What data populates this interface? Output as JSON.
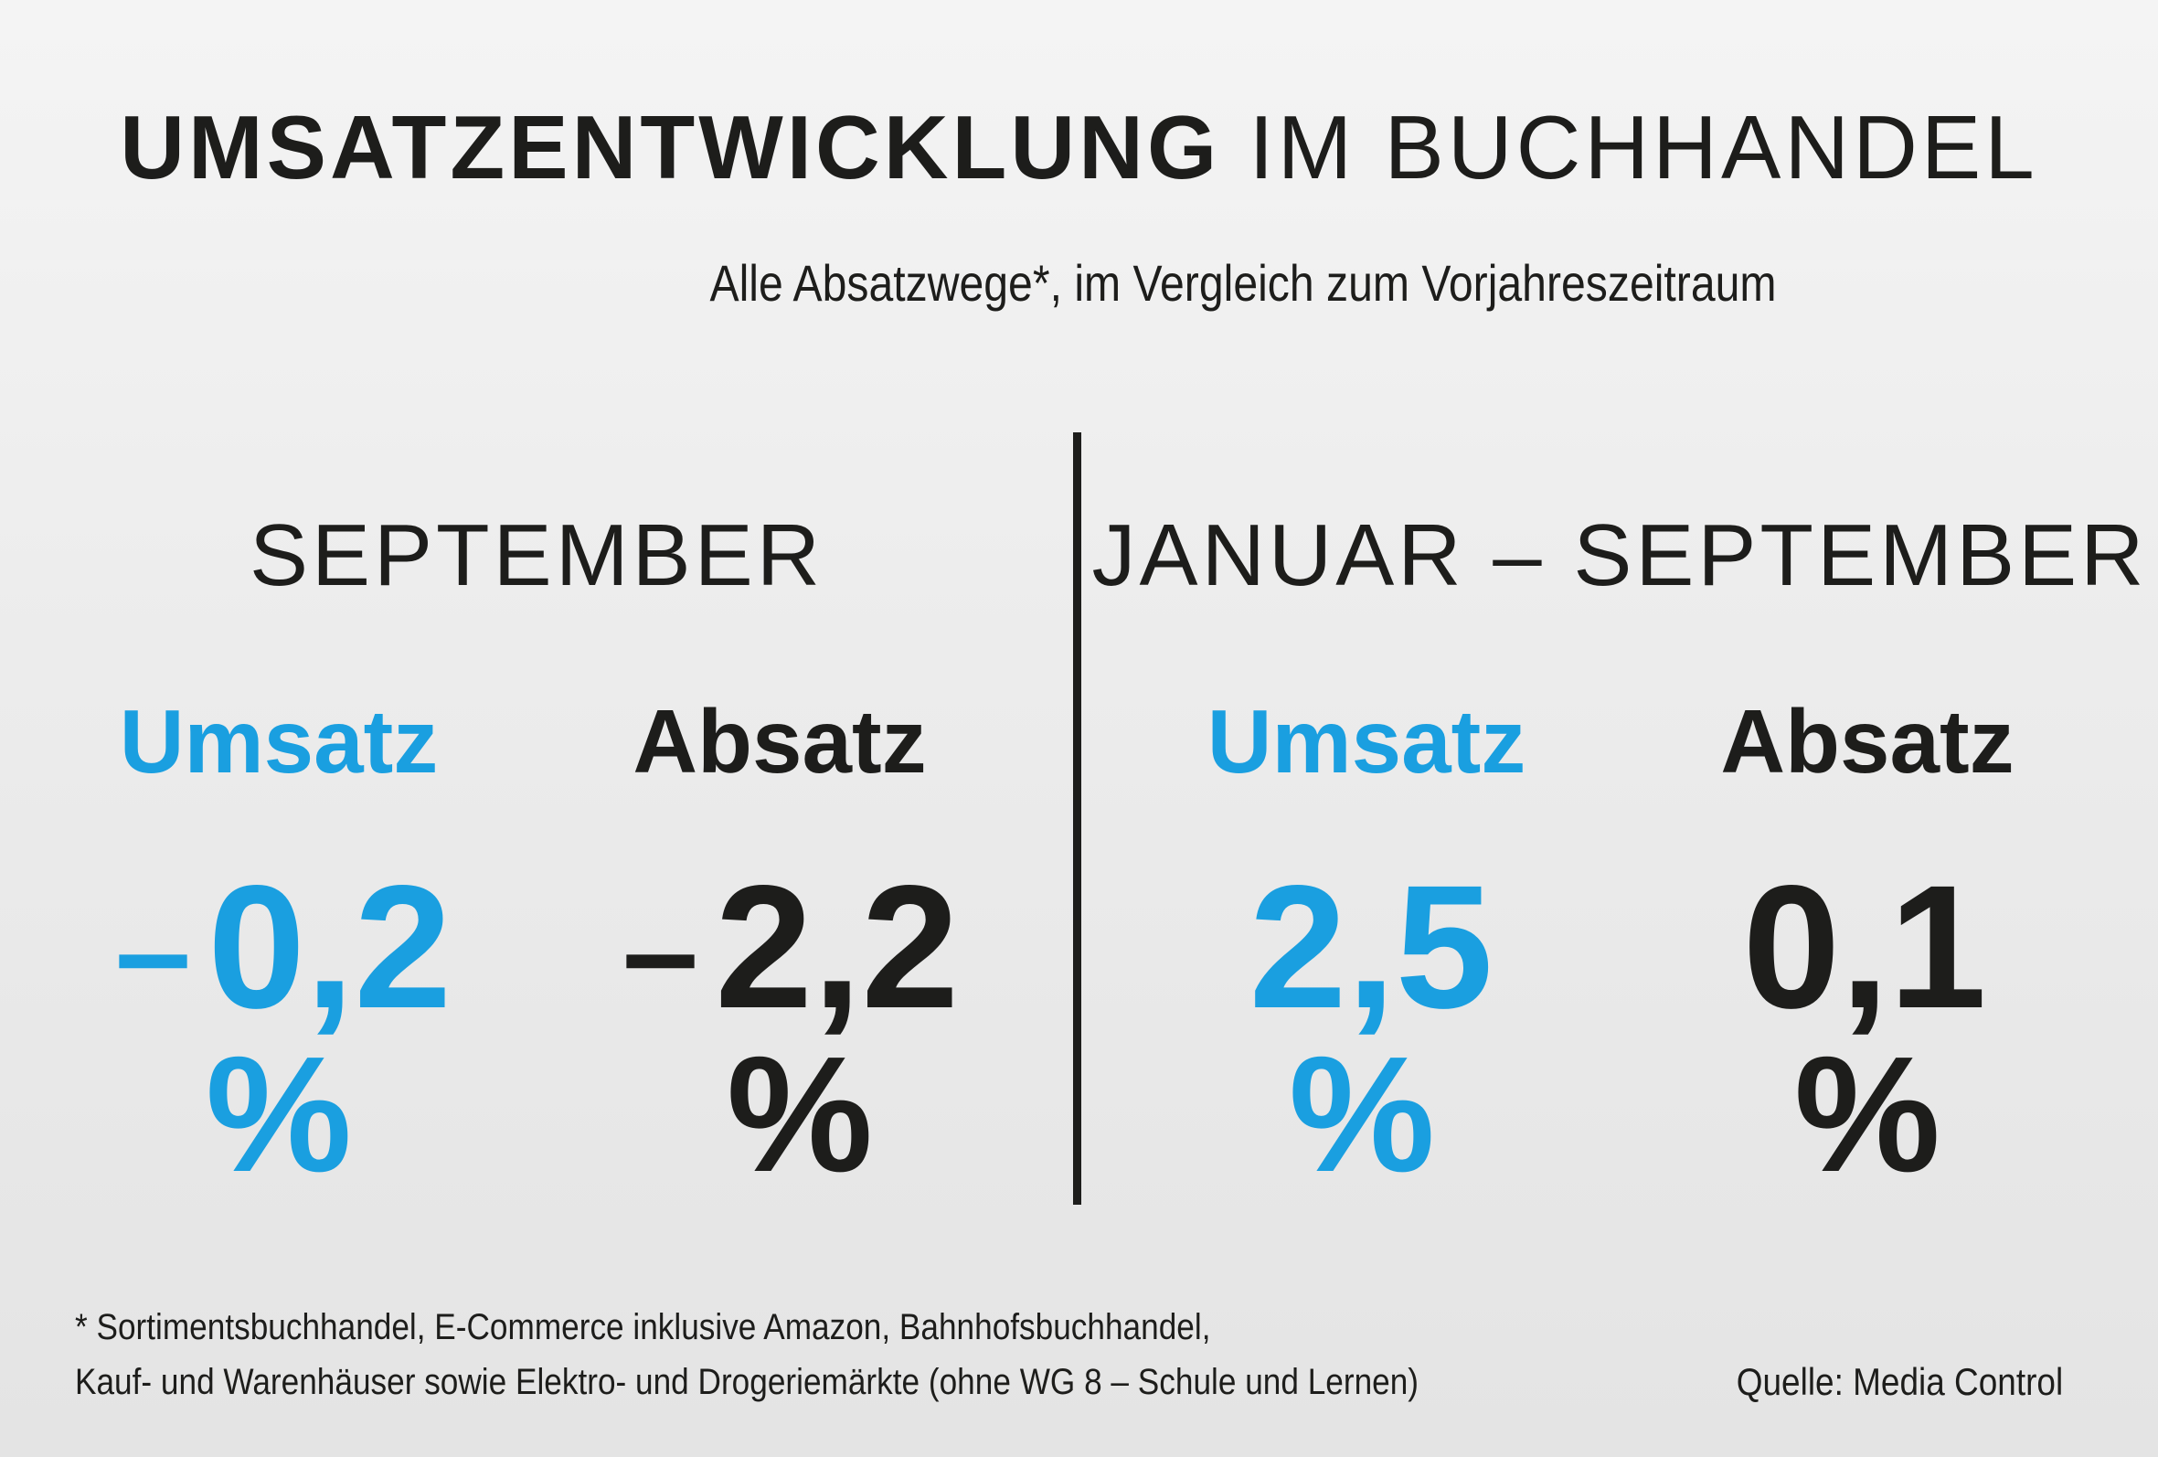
{
  "title": {
    "bold": "UMSATZENTWICKLUNG",
    "light": "IM BUCHHANDEL"
  },
  "subtitle": "Alle Absatzwege*, im Vergleich zum Vorjahreszeitraum",
  "periods": [
    {
      "label": "SEPTEMBER",
      "metrics": [
        {
          "label": "Umsatz",
          "sign": "–",
          "value": "0,2",
          "unit": "%",
          "color": "#1a9fe0"
        },
        {
          "label": "Absatz",
          "sign": "–",
          "value": "2,2",
          "unit": "%",
          "color": "#1d1d1b"
        }
      ]
    },
    {
      "label": "JANUAR – SEPTEMBER",
      "metrics": [
        {
          "label": "Umsatz",
          "sign": "",
          "value": "2,5",
          "unit": "%",
          "color": "#1a9fe0"
        },
        {
          "label": "Absatz",
          "sign": "",
          "value": "0,1",
          "unit": "%",
          "color": "#1d1d1b"
        }
      ]
    }
  ],
  "footnote": {
    "line1": "* Sortimentsbuchhandel, E-Commerce inklusive Amazon, Bahnhofsbuchhandel,",
    "line2": "Kauf- und Warenhäuser sowie Elektro- und Drogeriemärkte (ohne WG 8 – Schule und Lernen)"
  },
  "source": "Quelle: Media Control",
  "colors": {
    "accent": "#1a9fe0",
    "text": "#1d1d1b",
    "background": "#ececec"
  }
}
